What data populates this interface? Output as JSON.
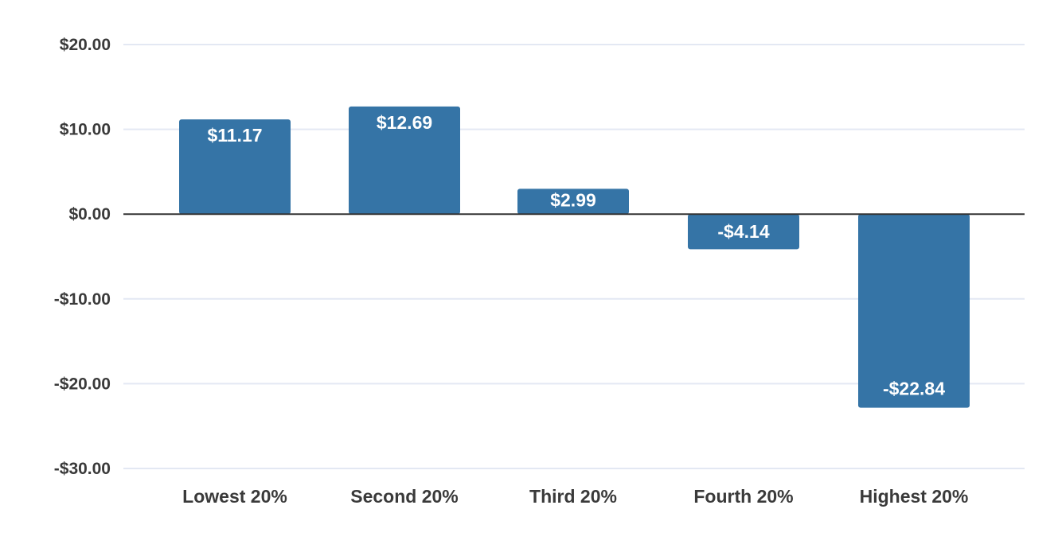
{
  "chart_data": {
    "type": "bar",
    "categories": [
      "Lowest 20%",
      "Second 20%",
      "Third 20%",
      "Fourth 20%",
      "Highest 20%"
    ],
    "values": [
      11.17,
      12.69,
      2.99,
      -4.14,
      -22.84
    ],
    "data_labels": [
      "$11.17",
      "$12.69",
      "$2.99",
      "-$4.14",
      "-$22.84"
    ],
    "title": "",
    "xlabel": "",
    "ylabel": "",
    "ylim": [
      -30,
      20
    ],
    "yticks": [
      20,
      10,
      0,
      -10,
      -20,
      -30
    ],
    "ytick_labels": [
      "$20.00",
      "$10.00",
      "$0.00",
      "-$10.00",
      "-$20.00",
      "-$30.00"
    ],
    "grid": true,
    "legend": "none",
    "colors": {
      "bar": "#3574a6",
      "grid": "#e3e8f3",
      "zero_line": "#333333",
      "text": "#3a3a3a"
    }
  }
}
